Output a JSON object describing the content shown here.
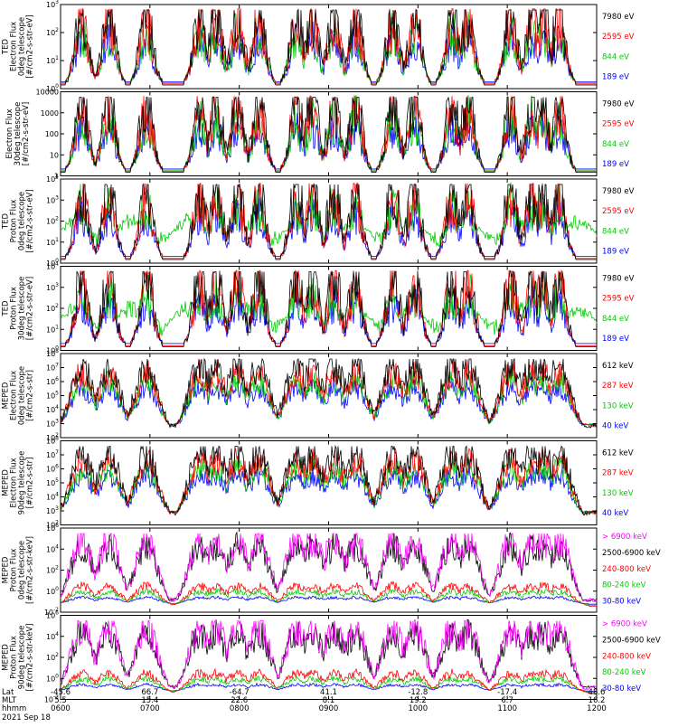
{
  "chart_data": {
    "type": "line",
    "date_label": "2021 Sep 18",
    "footer": {
      "row_labels": [
        "Lat",
        "MLT",
        "hhmm"
      ],
      "columns": [
        {
          "lat": "-45.6",
          "mlt": "5.5",
          "hhmm": "0600"
        },
        {
          "lat": "66.7",
          "mlt": "15.4",
          "hhmm": "0700"
        },
        {
          "lat": "-64.7",
          "mlt": "22.6",
          "hhmm": "0800"
        },
        {
          "lat": "41.1",
          "mlt": "8.1",
          "hhmm": "0900"
        },
        {
          "lat": "-12.8",
          "mlt": "19.2",
          "hhmm": "1000"
        },
        {
          "lat": "-17.4",
          "mlt": "6.7",
          "hhmm": "1100"
        },
        {
          "lat": "48.6",
          "mlt": "16.2",
          "hhmm": "1200"
        }
      ]
    },
    "panels": [
      {
        "ylabel": [
          "TED",
          "Electron Flux",
          "0deg telescope",
          "[#/cm2-s-str-eV]"
        ],
        "yticks": [
          "10^0",
          "10^1",
          "10^2",
          "10^3"
        ],
        "ylim_exp": [
          0,
          3
        ],
        "legend": [
          {
            "label": "7980 eV",
            "color": "#000000"
          },
          {
            "label": "2595 eV",
            "color": "#ff0000"
          },
          {
            "label": "844 eV",
            "color": "#00cc00"
          },
          {
            "label": "189 eV",
            "color": "#0000ff"
          }
        ]
      },
      {
        "ylabel": [
          "Electron Flux",
          "30deg telescope",
          "[#/cm2-s-str-eV]"
        ],
        "yticks": [
          "1",
          "10",
          "100",
          "1000",
          "10000"
        ],
        "ylim_exp": [
          0,
          4
        ],
        "legend": [
          {
            "label": "7980 eV",
            "color": "#000000"
          },
          {
            "label": "2595 eV",
            "color": "#ff0000"
          },
          {
            "label": "844 eV",
            "color": "#00cc00"
          },
          {
            "label": "189 eV",
            "color": "#0000ff"
          }
        ]
      },
      {
        "ylabel": [
          "TED",
          "Proton Flux",
          "0deg telescope",
          "[#/cm2-s-str-eV]"
        ],
        "yticks": [
          "10^0",
          "10^1",
          "10^2",
          "10^3",
          "10^4"
        ],
        "ylim_exp": [
          0,
          4
        ],
        "legend": [
          {
            "label": "7980 eV",
            "color": "#000000"
          },
          {
            "label": "2595 eV",
            "color": "#ff0000"
          },
          {
            "label": "844 eV",
            "color": "#00cc00"
          },
          {
            "label": "189 eV",
            "color": "#0000ff"
          }
        ]
      },
      {
        "ylabel": [
          "TED",
          "Proton Flux",
          "30deg telescope",
          "[#/cm2-s-str-eV]"
        ],
        "yticks": [
          "10^0",
          "10^1",
          "10^2",
          "10^3",
          "10^4"
        ],
        "ylim_exp": [
          0,
          4
        ],
        "legend": [
          {
            "label": "7980 eV",
            "color": "#000000"
          },
          {
            "label": "2595 eV",
            "color": "#ff0000"
          },
          {
            "label": "844 eV",
            "color": "#00cc00"
          },
          {
            "label": "189 eV",
            "color": "#0000ff"
          }
        ]
      },
      {
        "ylabel": [
          "MEPED",
          "Electron Flux",
          "0deg telescope",
          "[#/cm2-s-str]"
        ],
        "yticks": [
          "10^2",
          "10^3",
          "10^4",
          "10^5",
          "10^6",
          "10^7",
          "10^8"
        ],
        "ylim_exp": [
          2,
          8
        ],
        "legend": [
          {
            "label": "612 keV",
            "color": "#000000"
          },
          {
            "label": "287 keV",
            "color": "#ff0000"
          },
          {
            "label": "130 keV",
            "color": "#00cc00"
          },
          {
            "label": "40 keV",
            "color": "#0000ff"
          }
        ]
      },
      {
        "ylabel": [
          "MEPED",
          "Electron Flux",
          "90deg telescope",
          "[#/cm2-s-str]"
        ],
        "yticks": [
          "10^2",
          "10^3",
          "10^4",
          "10^5",
          "10^6",
          "10^7",
          "10^8"
        ],
        "ylim_exp": [
          2,
          8
        ],
        "legend": [
          {
            "label": "612 keV",
            "color": "#000000"
          },
          {
            "label": "287 keV",
            "color": "#ff0000"
          },
          {
            "label": "130 keV",
            "color": "#00cc00"
          },
          {
            "label": "40 keV",
            "color": "#0000ff"
          }
        ]
      },
      {
        "ylabel": [
          "MEPED",
          "Proton Flux",
          "0deg telescope",
          "[#/cm2-s-str-keV]"
        ],
        "yticks": [
          "10^-2",
          "10^0",
          "10^2",
          "10^4",
          "10^6"
        ],
        "ylim_exp": [
          -2,
          6
        ],
        "legend": [
          {
            "label": "> 6900 keV",
            "color": "#ff00ff"
          },
          {
            "label": "2500-6900 keV",
            "color": "#000000"
          },
          {
            "label": "240-800 keV",
            "color": "#ff0000"
          },
          {
            "label": "80-240 keV",
            "color": "#00cc00"
          },
          {
            "label": "30-80 keV",
            "color": "#0000ff"
          }
        ]
      },
      {
        "ylabel": [
          "MEPED",
          "Proton Flux",
          "90deg telescope",
          "[#/cm2-s-str-keV]"
        ],
        "yticks": [
          "10^-2",
          "10^0",
          "10^2",
          "10^4",
          "10^6"
        ],
        "ylim_exp": [
          -2,
          6
        ],
        "legend": [
          {
            "label": "> 6900 keV",
            "color": "#ff00ff"
          },
          {
            "label": "2500-6900 keV",
            "color": "#000000"
          },
          {
            "label": "240-800 keV",
            "color": "#ff0000"
          },
          {
            "label": "80-240 keV",
            "color": "#00cc00"
          },
          {
            "label": "30-80 keV",
            "color": "#0000ff"
          }
        ]
      }
    ]
  }
}
